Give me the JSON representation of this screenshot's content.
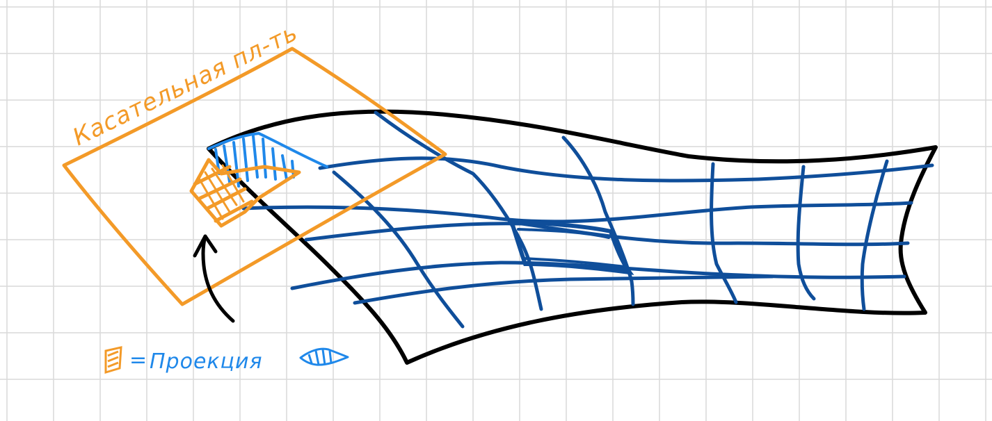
{
  "annotations": {
    "tangent_plane_label": "Касательная пл-ть",
    "legend_equals": "=",
    "legend_projection": "Проекция"
  },
  "colors": {
    "grid": "#d9d9d9",
    "surface_outline": "#000000",
    "mesh": "#0f4e9a",
    "tangent_plane": "#f39a28",
    "projection_hatch": "#1f88ea"
  }
}
